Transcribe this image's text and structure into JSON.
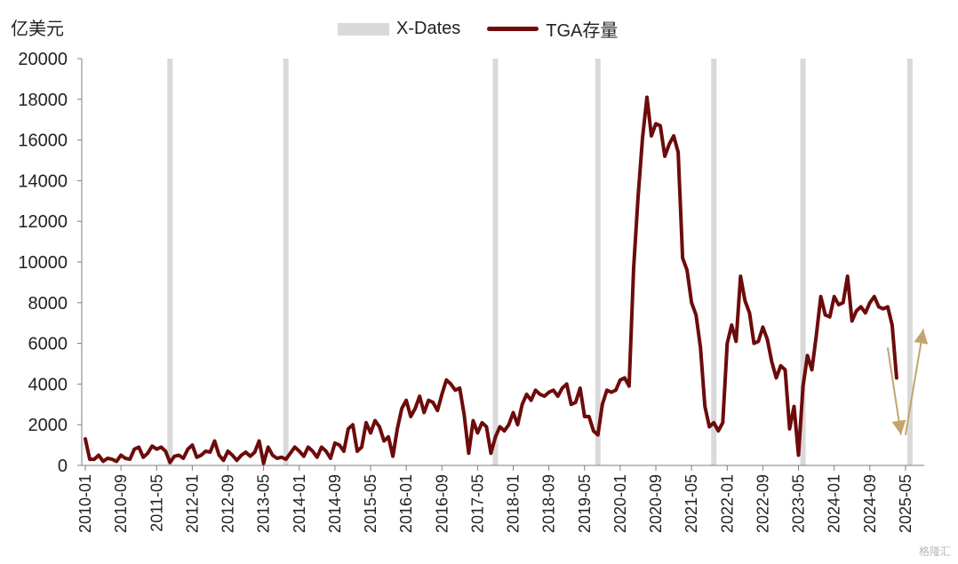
{
  "unit_label": "亿美元",
  "watermark": "格隆汇",
  "chart_data": {
    "type": "line",
    "ylim": [
      0,
      20000
    ],
    "yticks": [
      0,
      2000,
      4000,
      6000,
      8000,
      10000,
      12000,
      14000,
      16000,
      18000,
      20000
    ],
    "xticks": [
      "2010-01",
      "2010-09",
      "2011-05",
      "2012-01",
      "2012-09",
      "2013-05",
      "2014-01",
      "2014-09",
      "2015-05",
      "2016-01",
      "2016-09",
      "2017-05",
      "2018-01",
      "2018-09",
      "2019-05",
      "2020-01",
      "2020-09",
      "2021-05",
      "2022-01",
      "2022-09",
      "2023-05",
      "2024-01",
      "2024-09",
      "2025-05"
    ],
    "legend": [
      {
        "name": "X-Dates",
        "kind": "bar",
        "color": "#d9d9d9"
      },
      {
        "name": "TGA存量",
        "kind": "line",
        "color": "#6d0b0b"
      }
    ],
    "x_dates": [
      "2011-08",
      "2013-10",
      "2017-09",
      "2019-08",
      "2021-10",
      "2023-06",
      "2025-06"
    ],
    "series": [
      {
        "name": "TGA存量",
        "color": "#6d0b0b",
        "points": [
          [
            "2010-01",
            1300
          ],
          [
            "2010-02",
            300
          ],
          [
            "2010-03",
            300
          ],
          [
            "2010-04",
            500
          ],
          [
            "2010-05",
            200
          ],
          [
            "2010-06",
            350
          ],
          [
            "2010-07",
            300
          ],
          [
            "2010-08",
            200
          ],
          [
            "2010-09",
            500
          ],
          [
            "2010-10",
            350
          ],
          [
            "2010-11",
            300
          ],
          [
            "2010-12",
            800
          ],
          [
            "2011-01",
            900
          ],
          [
            "2011-02",
            400
          ],
          [
            "2011-03",
            600
          ],
          [
            "2011-04",
            950
          ],
          [
            "2011-05",
            800
          ],
          [
            "2011-06",
            900
          ],
          [
            "2011-07",
            700
          ],
          [
            "2011-08",
            150
          ],
          [
            "2011-09",
            450
          ],
          [
            "2011-10",
            500
          ],
          [
            "2011-11",
            350
          ],
          [
            "2011-12",
            800
          ],
          [
            "2012-01",
            1000
          ],
          [
            "2012-02",
            400
          ],
          [
            "2012-03",
            500
          ],
          [
            "2012-04",
            700
          ],
          [
            "2012-05",
            650
          ],
          [
            "2012-06",
            1200
          ],
          [
            "2012-07",
            500
          ],
          [
            "2012-08",
            250
          ],
          [
            "2012-09",
            700
          ],
          [
            "2012-10",
            500
          ],
          [
            "2012-11",
            250
          ],
          [
            "2012-12",
            500
          ],
          [
            "2013-01",
            650
          ],
          [
            "2013-02",
            450
          ],
          [
            "2013-03",
            650
          ],
          [
            "2013-04",
            1200
          ],
          [
            "2013-05",
            100
          ],
          [
            "2013-06",
            900
          ],
          [
            "2013-07",
            500
          ],
          [
            "2013-08",
            350
          ],
          [
            "2013-09",
            400
          ],
          [
            "2013-10",
            300
          ],
          [
            "2013-11",
            600
          ],
          [
            "2013-12",
            900
          ],
          [
            "2014-01",
            700
          ],
          [
            "2014-02",
            450
          ],
          [
            "2014-03",
            900
          ],
          [
            "2014-04",
            700
          ],
          [
            "2014-05",
            400
          ],
          [
            "2014-06",
            900
          ],
          [
            "2014-07",
            700
          ],
          [
            "2014-08",
            350
          ],
          [
            "2014-09",
            1100
          ],
          [
            "2014-10",
            1000
          ],
          [
            "2014-11",
            700
          ],
          [
            "2014-12",
            1800
          ],
          [
            "2015-01",
            2000
          ],
          [
            "2015-02",
            700
          ],
          [
            "2015-03",
            900
          ],
          [
            "2015-04",
            2100
          ],
          [
            "2015-05",
            1600
          ],
          [
            "2015-06",
            2200
          ],
          [
            "2015-07",
            1900
          ],
          [
            "2015-08",
            1200
          ],
          [
            "2015-09",
            1400
          ],
          [
            "2015-10",
            450
          ],
          [
            "2015-11",
            1800
          ],
          [
            "2015-12",
            2800
          ],
          [
            "2016-01",
            3200
          ],
          [
            "2016-02",
            2400
          ],
          [
            "2016-03",
            2800
          ],
          [
            "2016-04",
            3400
          ],
          [
            "2016-05",
            2600
          ],
          [
            "2016-06",
            3200
          ],
          [
            "2016-07",
            3100
          ],
          [
            "2016-08",
            2700
          ],
          [
            "2016-09",
            3500
          ],
          [
            "2016-10",
            4200
          ],
          [
            "2016-11",
            4000
          ],
          [
            "2016-12",
            3700
          ],
          [
            "2017-01",
            3800
          ],
          [
            "2017-02",
            2500
          ],
          [
            "2017-03",
            600
          ],
          [
            "2017-04",
            2200
          ],
          [
            "2017-05",
            1600
          ],
          [
            "2017-06",
            2100
          ],
          [
            "2017-07",
            1900
          ],
          [
            "2017-08",
            600
          ],
          [
            "2017-09",
            1400
          ],
          [
            "2017-10",
            1900
          ],
          [
            "2017-11",
            1700
          ],
          [
            "2017-12",
            2000
          ],
          [
            "2018-01",
            2600
          ],
          [
            "2018-02",
            2000
          ],
          [
            "2018-03",
            3000
          ],
          [
            "2018-04",
            3500
          ],
          [
            "2018-05",
            3200
          ],
          [
            "2018-06",
            3700
          ],
          [
            "2018-07",
            3500
          ],
          [
            "2018-08",
            3400
          ],
          [
            "2018-09",
            3600
          ],
          [
            "2018-10",
            3700
          ],
          [
            "2018-11",
            3400
          ],
          [
            "2018-12",
            3800
          ],
          [
            "2019-01",
            4000
          ],
          [
            "2019-02",
            3000
          ],
          [
            "2019-03",
            3100
          ],
          [
            "2019-04",
            3800
          ],
          [
            "2019-05",
            2400
          ],
          [
            "2019-06",
            2400
          ],
          [
            "2019-07",
            1700
          ],
          [
            "2019-08",
            1500
          ],
          [
            "2019-09",
            3000
          ],
          [
            "2019-10",
            3700
          ],
          [
            "2019-11",
            3600
          ],
          [
            "2019-12",
            3700
          ],
          [
            "2020-01",
            4200
          ],
          [
            "2020-02",
            4300
          ],
          [
            "2020-03",
            3900
          ],
          [
            "2020-04",
            9700
          ],
          [
            "2020-05",
            13200
          ],
          [
            "2020-06",
            16100
          ],
          [
            "2020-07",
            18100
          ],
          [
            "2020-08",
            16200
          ],
          [
            "2020-09",
            16800
          ],
          [
            "2020-10",
            16700
          ],
          [
            "2020-11",
            15200
          ],
          [
            "2020-12",
            15800
          ],
          [
            "2021-01",
            16200
          ],
          [
            "2021-02",
            15400
          ],
          [
            "2021-03",
            10200
          ],
          [
            "2021-04",
            9600
          ],
          [
            "2021-05",
            8000
          ],
          [
            "2021-06",
            7400
          ],
          [
            "2021-07",
            5800
          ],
          [
            "2021-08",
            2900
          ],
          [
            "2021-09",
            1900
          ],
          [
            "2021-10",
            2100
          ],
          [
            "2021-11",
            1700
          ],
          [
            "2021-12",
            2100
          ],
          [
            "2022-01",
            6000
          ],
          [
            "2022-02",
            6900
          ],
          [
            "2022-03",
            6100
          ],
          [
            "2022-04",
            9300
          ],
          [
            "2022-05",
            8100
          ],
          [
            "2022-06",
            7500
          ],
          [
            "2022-07",
            6000
          ],
          [
            "2022-08",
            6100
          ],
          [
            "2022-09",
            6800
          ],
          [
            "2022-10",
            6200
          ],
          [
            "2022-11",
            5100
          ],
          [
            "2022-12",
            4300
          ],
          [
            "2023-01",
            4900
          ],
          [
            "2023-02",
            4700
          ],
          [
            "2023-03",
            1800
          ],
          [
            "2023-04",
            2900
          ],
          [
            "2023-05",
            500
          ],
          [
            "2023-06",
            3900
          ],
          [
            "2023-07",
            5400
          ],
          [
            "2023-08",
            4700
          ],
          [
            "2023-09",
            6400
          ],
          [
            "2023-10",
            8300
          ],
          [
            "2023-11",
            7400
          ],
          [
            "2023-12",
            7300
          ],
          [
            "2024-01",
            8300
          ],
          [
            "2024-02",
            7900
          ],
          [
            "2024-03",
            8000
          ],
          [
            "2024-04",
            9300
          ],
          [
            "2024-05",
            7100
          ],
          [
            "2024-06",
            7600
          ],
          [
            "2024-07",
            7800
          ],
          [
            "2024-08",
            7500
          ],
          [
            "2024-09",
            8000
          ],
          [
            "2024-10",
            8300
          ],
          [
            "2024-11",
            7800
          ],
          [
            "2024-12",
            7700
          ],
          [
            "2025-01",
            7800
          ],
          [
            "2025-02",
            6900
          ],
          [
            "2025-03",
            4300
          ]
        ]
      }
    ],
    "annotations": [
      {
        "kind": "arrow",
        "from": [
          "2025-01",
          5800
        ],
        "to": [
          "2025-04",
          1500
        ],
        "color": "#c4a46e"
      },
      {
        "kind": "arrow",
        "from": [
          "2025-05",
          1500
        ],
        "to": [
          "2025-09",
          6700
        ],
        "color": "#c4a46e"
      }
    ]
  }
}
